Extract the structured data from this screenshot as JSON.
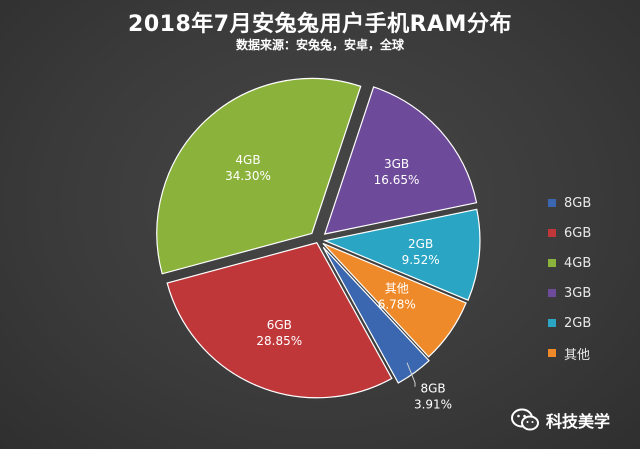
{
  "chart_data": {
    "type": "pie",
    "title": "2018年7月安兔兔用户手机RAM分布",
    "subtitle": "数据来源：安兔兔，安卓，全球",
    "slices": [
      {
        "name": "8GB",
        "value": 3.91,
        "label": "3.91%",
        "color": "#3a67b0"
      },
      {
        "name": "6GB",
        "value": 28.85,
        "label": "28.85%",
        "color": "#c0373a"
      },
      {
        "name": "4GB",
        "value": 34.3,
        "label": "34.30%",
        "color": "#8bb23a"
      },
      {
        "name": "3GB",
        "value": 16.65,
        "label": "16.65%",
        "color": "#6e4a9a"
      },
      {
        "name": "2GB",
        "value": 9.52,
        "label": "9.52%",
        "color": "#2aa6c4"
      },
      {
        "name": "其他",
        "value": 6.78,
        "label": "6.78%",
        "color": "#ef8a2a"
      }
    ],
    "legend_position": "right"
  },
  "watermark": {
    "text": "科技美学",
    "icon": "wechat-icon"
  }
}
